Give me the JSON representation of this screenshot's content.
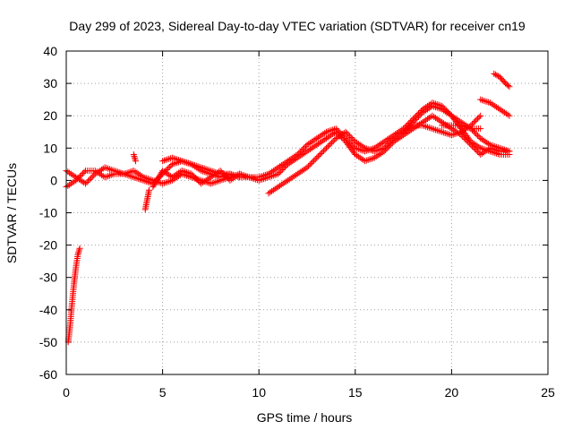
{
  "chart_data": {
    "type": "scatter",
    "title": "Day 299 of 2023, Sidereal Day-to-day VTEC variation (SDTVAR) for receiver cn19",
    "xlabel": "GPS time / hours",
    "ylabel": "SDTVAR / TECUs",
    "xlim": [
      0,
      25
    ],
    "ylim": [
      -60,
      40
    ],
    "xticks": [
      0,
      5,
      10,
      15,
      20,
      25
    ],
    "yticks": [
      -60,
      -50,
      -40,
      -30,
      -20,
      -10,
      0,
      10,
      20,
      30,
      40
    ],
    "grid": true,
    "marker": "+",
    "color": "#ff0000",
    "series": [
      {
        "name": "early-descent",
        "points": [
          [
            0.1,
            -50
          ],
          [
            0.2,
            -45
          ],
          [
            0.3,
            -38
          ],
          [
            0.4,
            -32
          ],
          [
            0.5,
            -27
          ],
          [
            0.6,
            -23
          ],
          [
            0.7,
            -21
          ]
        ]
      },
      {
        "name": "night-a",
        "points": [
          [
            0,
            3
          ],
          [
            0.5,
            1
          ],
          [
            1,
            -1
          ],
          [
            1.5,
            2
          ],
          [
            2,
            4
          ],
          [
            2.5,
            3
          ],
          [
            3,
            2
          ],
          [
            3.5,
            1
          ],
          [
            4,
            0
          ],
          [
            4.5,
            -1
          ],
          [
            5,
            2
          ],
          [
            5.5,
            5
          ],
          [
            6,
            6
          ],
          [
            6.5,
            5
          ],
          [
            7,
            3
          ],
          [
            7.5,
            2
          ],
          [
            8,
            1
          ],
          [
            8.5,
            2
          ],
          [
            9,
            1
          ],
          [
            9.5,
            1
          ],
          [
            10,
            1
          ],
          [
            10.5,
            2
          ],
          [
            11,
            4
          ],
          [
            11.5,
            6
          ],
          [
            12,
            8
          ],
          [
            12.5,
            11
          ],
          [
            13,
            13
          ],
          [
            13.5,
            15
          ],
          [
            14,
            16
          ],
          [
            14.5,
            13
          ],
          [
            15,
            10
          ],
          [
            15.5,
            9
          ],
          [
            16,
            10
          ],
          [
            16.5,
            12
          ],
          [
            17,
            14
          ],
          [
            17.5,
            16
          ],
          [
            18,
            19
          ],
          [
            18.5,
            22
          ],
          [
            19,
            24
          ],
          [
            19.5,
            23
          ],
          [
            20,
            20
          ],
          [
            20.5,
            16
          ],
          [
            21,
            12
          ],
          [
            21.5,
            10
          ],
          [
            22,
            9
          ],
          [
            22.5,
            8
          ],
          [
            23,
            8
          ]
        ]
      },
      {
        "name": "night-b",
        "points": [
          [
            0,
            -2
          ],
          [
            0.5,
            0
          ],
          [
            1,
            3
          ],
          [
            1.5,
            3
          ],
          [
            2,
            1
          ],
          [
            2.5,
            2
          ],
          [
            3,
            2
          ],
          [
            3.5,
            3
          ],
          [
            4,
            1
          ],
          [
            4.5,
            0
          ],
          [
            5,
            -1
          ],
          [
            5.5,
            0
          ],
          [
            6,
            2
          ],
          [
            6.5,
            1
          ],
          [
            7,
            0
          ],
          [
            7.5,
            -1
          ],
          [
            8,
            0
          ],
          [
            8.5,
            1
          ],
          [
            9,
            2
          ],
          [
            9.5,
            1
          ],
          [
            10,
            0
          ],
          [
            10.5,
            1
          ],
          [
            11,
            2
          ],
          [
            11.5,
            5
          ],
          [
            12,
            7
          ],
          [
            12.5,
            9
          ],
          [
            13,
            11
          ],
          [
            13.5,
            13
          ],
          [
            14,
            15
          ],
          [
            14.5,
            12
          ],
          [
            15,
            8
          ],
          [
            15.5,
            6
          ],
          [
            16,
            7
          ],
          [
            16.5,
            9
          ],
          [
            17,
            12
          ],
          [
            17.5,
            14
          ],
          [
            18,
            16
          ],
          [
            18.5,
            18
          ],
          [
            19,
            20
          ],
          [
            19.5,
            18
          ],
          [
            20,
            16
          ],
          [
            20.5,
            14
          ],
          [
            21,
            11
          ],
          [
            21.5,
            8
          ],
          [
            22,
            10
          ],
          [
            22.5,
            9
          ],
          [
            23,
            9
          ]
        ]
      },
      {
        "name": "band-c",
        "points": [
          [
            5,
            6
          ],
          [
            5.5,
            7
          ],
          [
            6,
            6
          ],
          [
            6.5,
            5
          ],
          [
            7,
            4
          ],
          [
            7.5,
            3
          ],
          [
            8,
            2
          ],
          [
            8.5,
            2
          ],
          [
            9,
            1
          ]
        ]
      },
      {
        "name": "band-d",
        "points": [
          [
            4.5,
            -2
          ],
          [
            5,
            3
          ],
          [
            5.5,
            1
          ],
          [
            6,
            3
          ],
          [
            6.5,
            2
          ],
          [
            7,
            -1
          ],
          [
            7.5,
            1
          ],
          [
            8,
            3
          ],
          [
            8.5,
            0
          ],
          [
            9,
            2
          ]
        ]
      },
      {
        "name": "rise-e",
        "points": [
          [
            10.5,
            -4
          ],
          [
            11,
            -2
          ],
          [
            11.5,
            0
          ],
          [
            12,
            2
          ],
          [
            12.5,
            4
          ],
          [
            13,
            7
          ],
          [
            13.5,
            10
          ],
          [
            14,
            13
          ],
          [
            14.5,
            15
          ],
          [
            15,
            12
          ],
          [
            15.5,
            10
          ],
          [
            16,
            9
          ],
          [
            16.5,
            10
          ],
          [
            17,
            13
          ],
          [
            17.5,
            15
          ],
          [
            18,
            17
          ],
          [
            18.5,
            17
          ],
          [
            19,
            16
          ],
          [
            19.5,
            15
          ],
          [
            20,
            14
          ],
          [
            20.5,
            15
          ],
          [
            21,
            17
          ],
          [
            21.5,
            20
          ]
        ]
      },
      {
        "name": "peak-f",
        "points": [
          [
            17.5,
            15
          ],
          [
            18,
            18
          ],
          [
            18.5,
            21
          ],
          [
            19,
            23
          ],
          [
            19.5,
            22
          ],
          [
            20,
            20
          ],
          [
            20.5,
            18
          ],
          [
            21,
            16
          ],
          [
            21.5,
            13
          ],
          [
            22,
            11
          ],
          [
            22.5,
            10
          ],
          [
            23,
            9
          ]
        ]
      },
      {
        "name": "late-g",
        "points": [
          [
            19.5,
            17
          ],
          [
            20,
            17
          ],
          [
            20.5,
            17
          ],
          [
            21,
            16
          ],
          [
            21.5,
            16
          ]
        ]
      },
      {
        "name": "late-h",
        "points": [
          [
            21.5,
            25
          ],
          [
            22,
            24
          ],
          [
            22.5,
            22
          ],
          [
            23,
            20
          ]
        ]
      },
      {
        "name": "late-i",
        "points": [
          [
            22.2,
            33
          ],
          [
            22.5,
            32
          ],
          [
            22.8,
            30
          ],
          [
            23,
            29
          ]
        ]
      },
      {
        "name": "spike-j",
        "points": [
          [
            3.5,
            8
          ],
          [
            3.6,
            6
          ]
        ]
      },
      {
        "name": "dip-k",
        "points": [
          [
            4.1,
            -9
          ],
          [
            4.2,
            -6
          ],
          [
            4.3,
            -3
          ]
        ]
      }
    ]
  }
}
